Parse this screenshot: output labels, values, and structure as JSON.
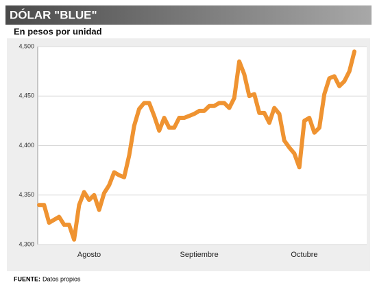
{
  "chart_data": {
    "type": "line",
    "title": "DÓLAR \"BLUE\"",
    "subtitle": "En pesos por unidad",
    "categories": [
      null,
      null,
      null,
      null,
      null,
      null,
      null,
      null,
      null,
      null,
      "Agosto",
      null,
      null,
      null,
      null,
      null,
      null,
      null,
      null,
      null,
      null,
      null,
      null,
      null,
      null,
      null,
      null,
      null,
      null,
      null,
      null,
      null,
      "Septiembre",
      null,
      null,
      null,
      null,
      null,
      null,
      null,
      null,
      null,
      null,
      null,
      null,
      null,
      null,
      null,
      null,
      null,
      null,
      null,
      null,
      "Octubre",
      null,
      null,
      null,
      null,
      null,
      null,
      null,
      null,
      null,
      null
    ],
    "values": [
      4.34,
      4.34,
      4.322,
      4.325,
      4.328,
      4.32,
      4.32,
      4.305,
      4.34,
      4.353,
      4.345,
      4.35,
      4.335,
      4.352,
      4.36,
      4.373,
      4.37,
      4.368,
      4.39,
      4.42,
      4.437,
      4.443,
      4.443,
      4.43,
      4.415,
      4.428,
      4.418,
      4.418,
      4.428,
      4.428,
      4.43,
      4.432,
      4.435,
      4.435,
      4.44,
      4.44,
      4.443,
      4.443,
      4.438,
      4.448,
      4.485,
      4.472,
      4.45,
      4.452,
      4.433,
      4.433,
      4.423,
      4.438,
      4.432,
      4.405,
      4.398,
      4.392,
      4.378,
      4.425,
      4.428,
      4.413,
      4.418,
      4.452,
      4.468,
      4.47,
      4.46,
      4.465,
      4.475,
      4.495
    ],
    "color": "#ef9331",
    "ylim": [
      4.3,
      4.5
    ],
    "yticks": [
      {
        "value": 4.3,
        "label": "4,300"
      },
      {
        "value": 4.35,
        "label": "4,350"
      },
      {
        "value": 4.4,
        "label": "4,400"
      },
      {
        "value": 4.45,
        "label": "4,450"
      },
      {
        "value": 4.5,
        "label": "4,500"
      }
    ],
    "grid": true,
    "source_label": "FUENTE:",
    "source": "Datos propios"
  }
}
